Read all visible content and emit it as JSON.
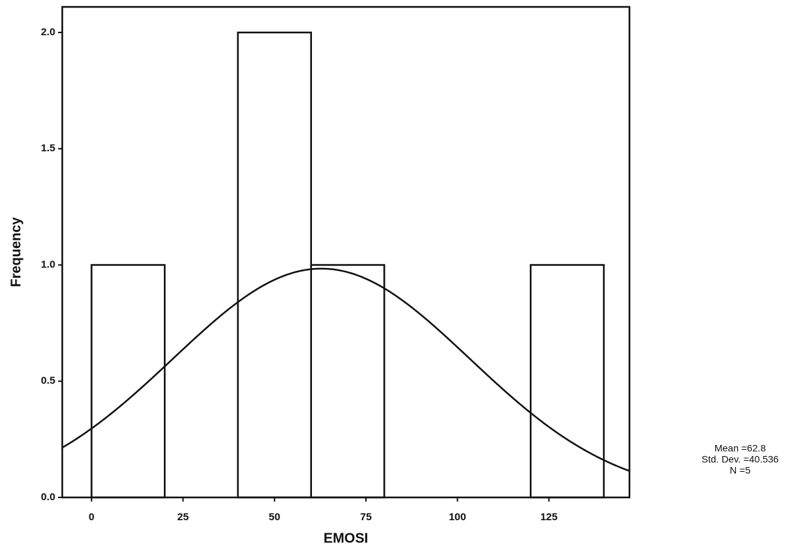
{
  "chart_data": {
    "type": "histogram",
    "x_label": "EMOSI",
    "y_label": "Frequency",
    "bins": [
      0,
      20,
      40,
      60,
      80,
      100,
      120,
      140
    ],
    "values": [
      1,
      0,
      2,
      1,
      0,
      0,
      1
    ],
    "color": "#ffffff",
    "xlim": [
      -8,
      147
    ],
    "ylim": [
      0,
      2.11
    ],
    "xticks": [
      0,
      25,
      50,
      75,
      100,
      125
    ],
    "yticks": [
      {
        "value": 0,
        "label": "0.0"
      },
      0.5,
      {
        "value": 1,
        "label": "1.0"
      },
      1.5,
      {
        "value": 2,
        "label": "2.0"
      }
    ],
    "stats": [
      {
        "value": 62.8,
        "label": "Mean =62.8"
      },
      {
        "value": 40.536,
        "label": "Std. Dev. =40.536"
      },
      {
        "value": 5,
        "label": "N =5"
      }
    ]
  }
}
